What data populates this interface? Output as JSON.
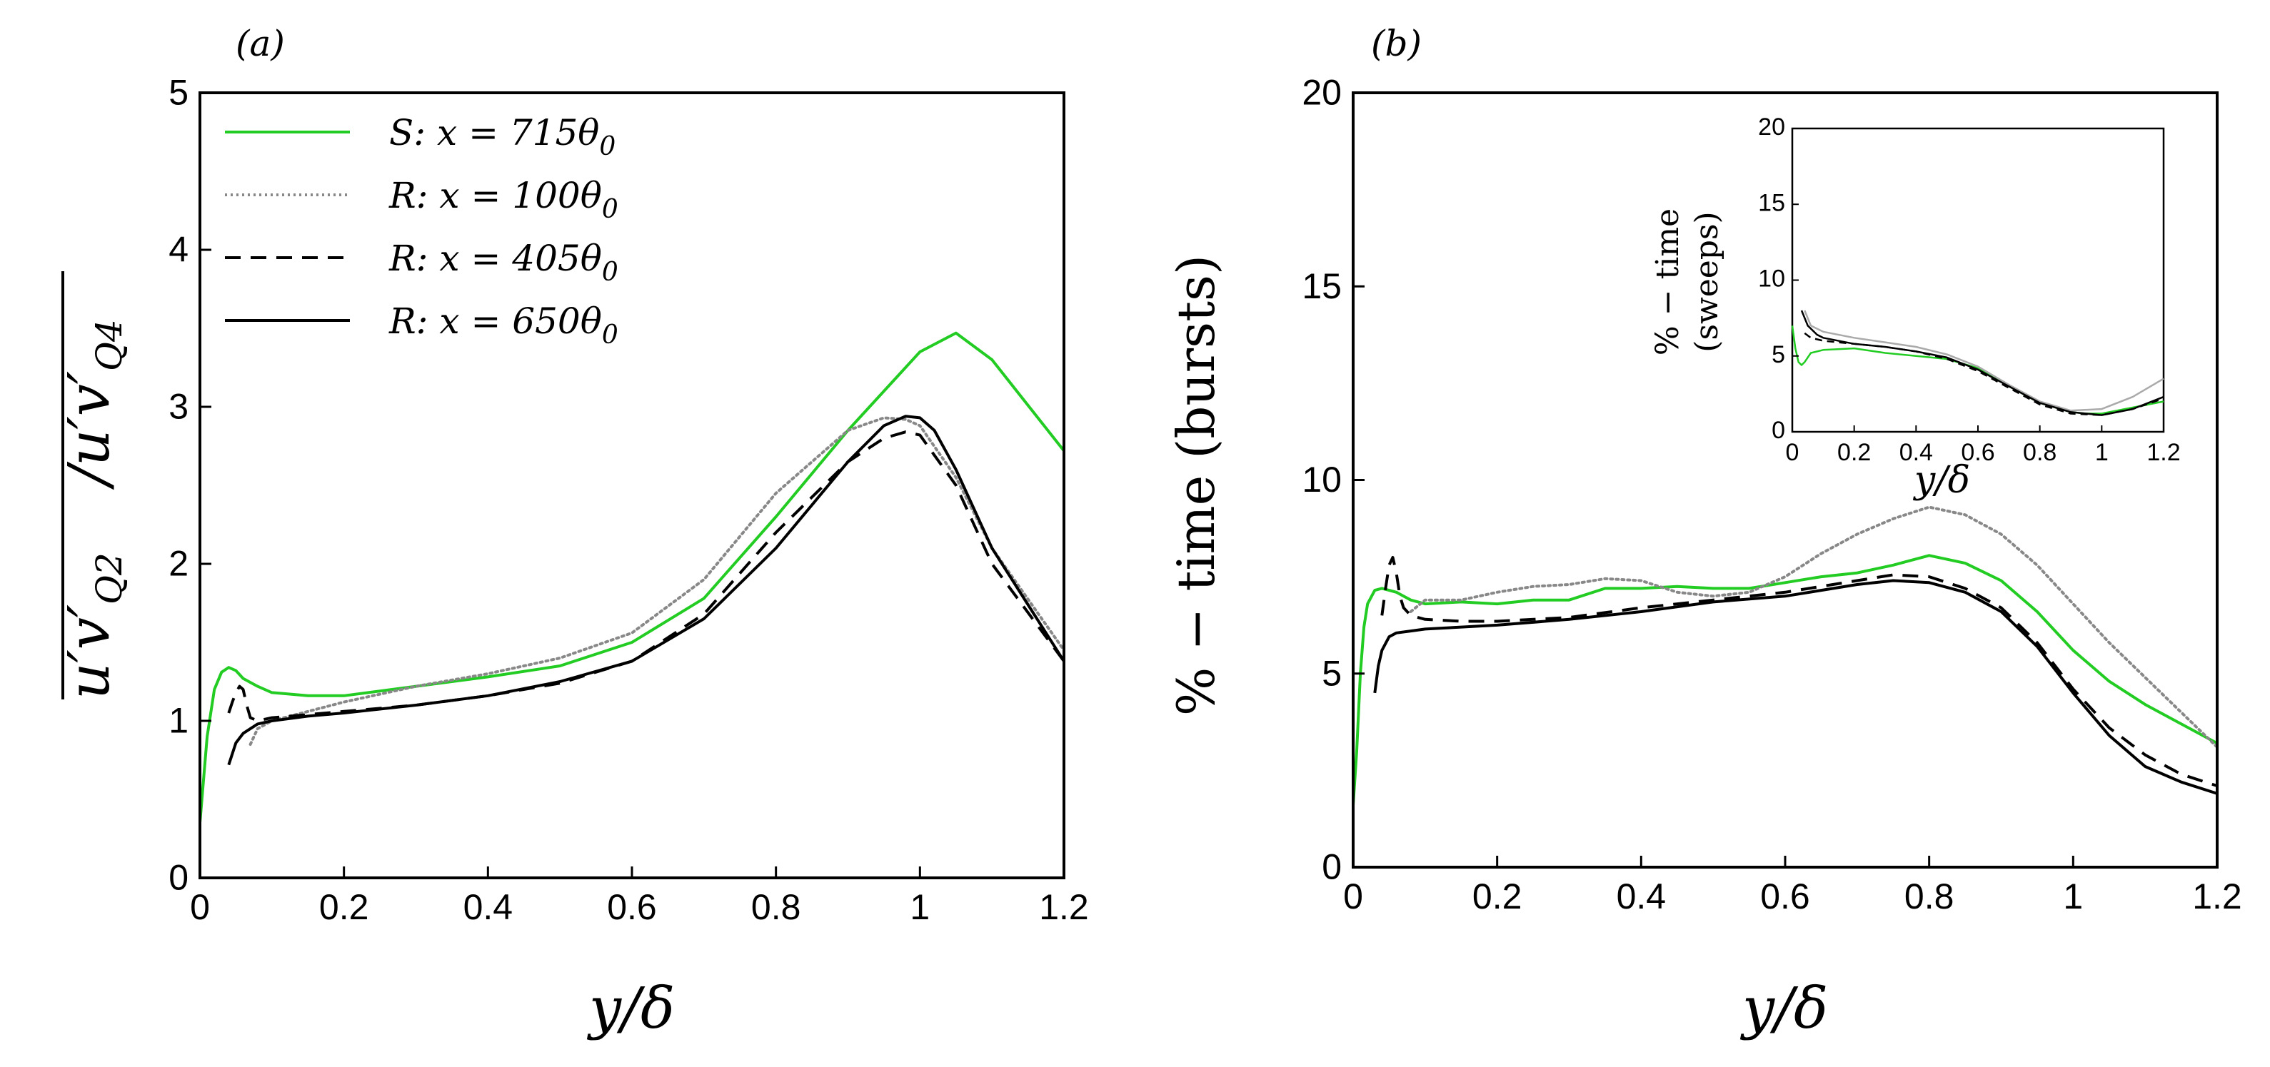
{
  "chart_data": [
    {
      "type": "line",
      "panel_label": "(a)",
      "xlabel": "y/δ",
      "ylabel": "u'v'Q2/u'v'Q4",
      "ylabel_parts": {
        "num": "u′v′",
        "num_sub": "Q2",
        "den": "u′v′",
        "den_sub": "Q4"
      },
      "xlim": [
        0,
        1.2
      ],
      "ylim": [
        0,
        5
      ],
      "xticks": [
        0,
        0.2,
        0.4,
        0.6,
        0.8,
        1,
        1.2
      ],
      "yticks": [
        0,
        1,
        2,
        3,
        4,
        5
      ],
      "xtick_labels": [
        "0",
        "0.2",
        "0.4",
        "0.6",
        "0.8",
        "1",
        "1.2"
      ],
      "ytick_labels": [
        "0",
        "1",
        "2",
        "3",
        "4",
        "5"
      ],
      "legend": {
        "position": "top-left"
      },
      "series": [
        {
          "name": "S: x = 715θ0",
          "label_main": "S: x = 715θ",
          "label_sub": "0",
          "color": "#22cc22",
          "style": "solid",
          "x": [
            0,
            0.01,
            0.02,
            0.03,
            0.04,
            0.05,
            0.06,
            0.08,
            0.1,
            0.15,
            0.2,
            0.3,
            0.4,
            0.5,
            0.6,
            0.7,
            0.8,
            0.9,
            0.95,
            1.0,
            1.05,
            1.1,
            1.2
          ],
          "y": [
            0.35,
            0.9,
            1.2,
            1.31,
            1.34,
            1.32,
            1.27,
            1.22,
            1.18,
            1.16,
            1.16,
            1.22,
            1.28,
            1.35,
            1.5,
            1.78,
            2.3,
            2.85,
            3.1,
            3.35,
            3.47,
            3.3,
            2.72
          ]
        },
        {
          "name": "R: x = 100θ0",
          "label_main": "R: x = 100θ",
          "label_sub": "0",
          "color": "#888888",
          "style": "dotted",
          "x": [
            0.07,
            0.08,
            0.1,
            0.15,
            0.2,
            0.3,
            0.4,
            0.5,
            0.6,
            0.7,
            0.8,
            0.9,
            0.95,
            0.98,
            1.0,
            1.05,
            1.1,
            1.2
          ],
          "y": [
            0.85,
            0.95,
            1.0,
            1.06,
            1.12,
            1.22,
            1.3,
            1.4,
            1.56,
            1.9,
            2.45,
            2.85,
            2.93,
            2.92,
            2.88,
            2.55,
            2.1,
            1.45
          ]
        },
        {
          "name": "R: x = 405θ0",
          "label_main": "R: x = 405θ",
          "label_sub": "0",
          "color": "#000000",
          "style": "dashed",
          "x": [
            0.04,
            0.045,
            0.05,
            0.055,
            0.06,
            0.065,
            0.07,
            0.08,
            0.1,
            0.15,
            0.2,
            0.3,
            0.4,
            0.5,
            0.6,
            0.7,
            0.8,
            0.9,
            0.95,
            0.98,
            1.0,
            1.05,
            1.1,
            1.2
          ],
          "y": [
            1.05,
            1.12,
            1.18,
            1.22,
            1.2,
            1.1,
            1.02,
            1.0,
            1.02,
            1.04,
            1.06,
            1.1,
            1.16,
            1.24,
            1.38,
            1.68,
            2.2,
            2.65,
            2.8,
            2.84,
            2.82,
            2.5,
            2.0,
            1.38
          ]
        },
        {
          "name": "R: x = 650θ0",
          "label_main": "R: x = 650θ",
          "label_sub": "0",
          "color": "#000000",
          "style": "solid",
          "x": [
            0.04,
            0.05,
            0.06,
            0.08,
            0.1,
            0.15,
            0.2,
            0.3,
            0.4,
            0.5,
            0.6,
            0.7,
            0.8,
            0.9,
            0.95,
            0.98,
            1.0,
            1.02,
            1.05,
            1.1,
            1.2
          ],
          "y": [
            0.72,
            0.86,
            0.92,
            0.98,
            1.0,
            1.03,
            1.05,
            1.1,
            1.16,
            1.25,
            1.38,
            1.65,
            2.1,
            2.65,
            2.88,
            2.94,
            2.93,
            2.85,
            2.6,
            2.1,
            1.38
          ]
        }
      ]
    },
    {
      "type": "line",
      "panel_label": "(b)",
      "xlabel": "y/δ",
      "ylabel": "% − time (bursts)",
      "xlim": [
        0,
        1.2
      ],
      "ylim": [
        0,
        20
      ],
      "xticks": [
        0,
        0.2,
        0.4,
        0.6,
        0.8,
        1,
        1.2
      ],
      "yticks": [
        0,
        5,
        10,
        15,
        20
      ],
      "xtick_labels": [
        "0",
        "0.2",
        "0.4",
        "0.6",
        "0.8",
        "1",
        "1.2"
      ],
      "ytick_labels": [
        "0",
        "5",
        "10",
        "15",
        "20"
      ],
      "series": [
        {
          "name": "S: x = 715θ0",
          "color": "#22cc22",
          "style": "solid",
          "x": [
            0,
            0.005,
            0.01,
            0.015,
            0.02,
            0.03,
            0.04,
            0.05,
            0.06,
            0.07,
            0.08,
            0.1,
            0.15,
            0.2,
            0.25,
            0.3,
            0.35,
            0.4,
            0.45,
            0.5,
            0.55,
            0.6,
            0.65,
            0.7,
            0.75,
            0.8,
            0.85,
            0.9,
            0.95,
            1.0,
            1.05,
            1.1,
            1.15,
            1.2
          ],
          "y": [
            1.6,
            3.0,
            5.0,
            6.2,
            6.8,
            7.15,
            7.2,
            7.15,
            7.1,
            7.0,
            6.9,
            6.8,
            6.85,
            6.8,
            6.9,
            6.9,
            7.2,
            7.2,
            7.25,
            7.2,
            7.2,
            7.35,
            7.5,
            7.6,
            7.8,
            8.05,
            7.85,
            7.4,
            6.6,
            5.6,
            4.8,
            4.2,
            3.7,
            3.2
          ]
        },
        {
          "name": "R: x = 100θ0",
          "color": "#888888",
          "style": "dotted",
          "x": [
            0.08,
            0.1,
            0.15,
            0.2,
            0.25,
            0.3,
            0.35,
            0.4,
            0.45,
            0.5,
            0.55,
            0.6,
            0.65,
            0.7,
            0.75,
            0.8,
            0.85,
            0.9,
            0.95,
            1.0,
            1.05,
            1.1,
            1.15,
            1.2
          ],
          "y": [
            6.6,
            6.9,
            6.9,
            7.1,
            7.25,
            7.3,
            7.45,
            7.4,
            7.1,
            7.0,
            7.1,
            7.5,
            8.1,
            8.6,
            9.0,
            9.3,
            9.1,
            8.6,
            7.8,
            6.8,
            5.8,
            4.9,
            4.0,
            3.1
          ]
        },
        {
          "name": "R: x = 405θ0",
          "color": "#000000",
          "style": "dashed",
          "x": [
            0.04,
            0.045,
            0.05,
            0.055,
            0.06,
            0.065,
            0.07,
            0.08,
            0.1,
            0.15,
            0.2,
            0.3,
            0.4,
            0.5,
            0.6,
            0.7,
            0.75,
            0.8,
            0.85,
            0.9,
            0.95,
            1.0,
            1.05,
            1.1,
            1.15,
            1.2
          ],
          "y": [
            6.5,
            7.2,
            7.8,
            8.0,
            7.6,
            7.0,
            6.7,
            6.5,
            6.4,
            6.35,
            6.35,
            6.45,
            6.7,
            6.9,
            7.1,
            7.4,
            7.55,
            7.5,
            7.2,
            6.7,
            5.8,
            4.6,
            3.6,
            2.9,
            2.4,
            2.1
          ]
        },
        {
          "name": "R: x = 650θ0",
          "color": "#000000",
          "style": "solid",
          "x": [
            0.03,
            0.035,
            0.04,
            0.05,
            0.06,
            0.08,
            0.1,
            0.15,
            0.2,
            0.3,
            0.4,
            0.5,
            0.6,
            0.7,
            0.75,
            0.8,
            0.85,
            0.9,
            0.95,
            1.0,
            1.05,
            1.1,
            1.15,
            1.2
          ],
          "y": [
            4.5,
            5.2,
            5.6,
            5.95,
            6.05,
            6.1,
            6.15,
            6.2,
            6.25,
            6.4,
            6.6,
            6.85,
            7.0,
            7.3,
            7.4,
            7.35,
            7.1,
            6.6,
            5.7,
            4.5,
            3.4,
            2.6,
            2.2,
            1.9
          ]
        }
      ]
    },
    {
      "type": "line",
      "role": "inset of panel (b)",
      "xlabel": "y/δ",
      "ylabel_line1": "% − time",
      "ylabel_line2": "(sweeps)",
      "xlim": [
        0,
        1.2
      ],
      "ylim": [
        0,
        20
      ],
      "xticks": [
        0,
        0.2,
        0.4,
        0.6,
        0.8,
        1,
        1.2
      ],
      "yticks": [
        0,
        5,
        10,
        15,
        20
      ],
      "xtick_labels": [
        "0",
        "0.2",
        "0.4",
        "0.6",
        "0.8",
        "1",
        "1.2"
      ],
      "ytick_labels": [
        "0",
        "5",
        "10",
        "15",
        "20"
      ],
      "series": [
        {
          "name": "S: x = 715θ0",
          "color": "#22cc22",
          "style": "solid",
          "x": [
            0,
            0.01,
            0.02,
            0.03,
            0.04,
            0.06,
            0.1,
            0.2,
            0.3,
            0.4,
            0.5,
            0.6,
            0.7,
            0.8,
            0.9,
            0.95,
            1.0,
            1.1,
            1.2
          ],
          "y": [
            7.0,
            5.5,
            4.6,
            4.4,
            4.6,
            5.2,
            5.4,
            5.5,
            5.2,
            5.0,
            4.8,
            4.2,
            3.0,
            1.9,
            1.3,
            1.2,
            1.2,
            1.6,
            2.0
          ]
        },
        {
          "name": "R: x = 100θ0",
          "color": "#aaaaaa",
          "style": "solid",
          "x": [
            0.04,
            0.06,
            0.1,
            0.2,
            0.3,
            0.4,
            0.5,
            0.6,
            0.7,
            0.8,
            0.9,
            1.0,
            1.1,
            1.2
          ],
          "y": [
            8.0,
            7.0,
            6.6,
            6.2,
            5.9,
            5.6,
            5.1,
            4.3,
            3.1,
            2.0,
            1.4,
            1.5,
            2.3,
            3.5
          ]
        },
        {
          "name": "R: x = 405θ0",
          "color": "#000000",
          "style": "dashed",
          "x": [
            0.04,
            0.06,
            0.1,
            0.2,
            0.3,
            0.4,
            0.5,
            0.6,
            0.7,
            0.8,
            0.9,
            1.0,
            1.1,
            1.2
          ],
          "y": [
            6.5,
            6.2,
            6.0,
            5.8,
            5.6,
            5.3,
            4.8,
            4.0,
            2.9,
            1.8,
            1.2,
            1.1,
            1.5,
            2.2
          ]
        },
        {
          "name": "R: x = 650θ0",
          "color": "#000000",
          "style": "solid",
          "x": [
            0.03,
            0.05,
            0.08,
            0.1,
            0.2,
            0.3,
            0.4,
            0.5,
            0.6,
            0.7,
            0.8,
            0.9,
            1.0,
            1.1,
            1.2
          ],
          "y": [
            8.0,
            7.0,
            6.4,
            6.2,
            5.8,
            5.6,
            5.3,
            4.9,
            4.1,
            3.0,
            1.9,
            1.3,
            1.1,
            1.5,
            2.3
          ]
        }
      ]
    }
  ]
}
